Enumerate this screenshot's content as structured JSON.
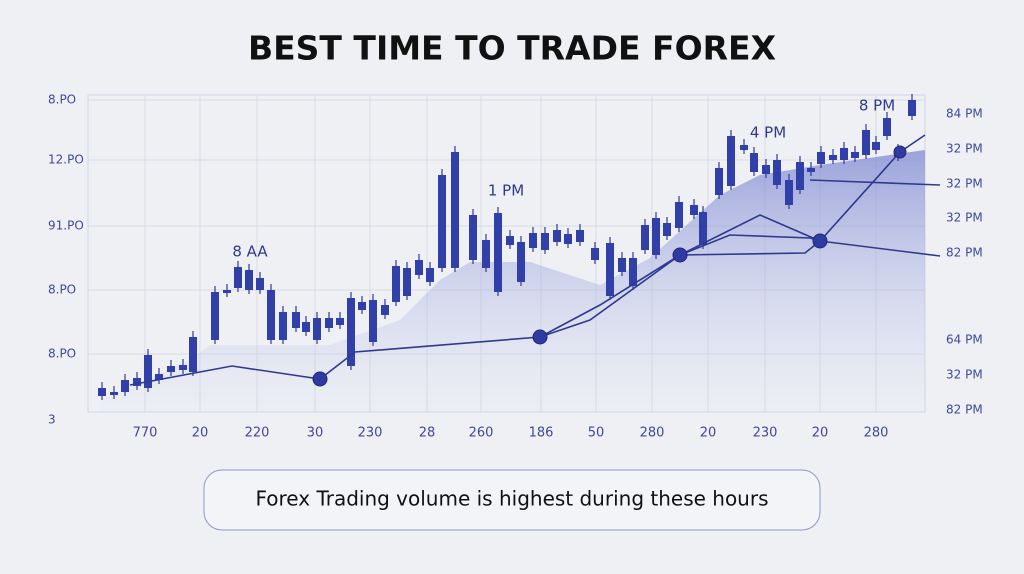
{
  "header": {
    "title": "BEST TIME TO TRADE FOREX"
  },
  "left_axis": {
    "labels": [
      "8.PO",
      "12.PO",
      "91.PO",
      "8.PO",
      "8.PO",
      "3"
    ]
  },
  "right_axis": {
    "labels": [
      "84 PM",
      "32 PM",
      "32 PM",
      "32 PM",
      "82 PM",
      "64 PM",
      "32 PM",
      "82 PM"
    ]
  },
  "bottom_axis": {
    "labels": [
      "770",
      "20",
      "220",
      "30",
      "230",
      "28",
      "260",
      "186",
      "50",
      "280",
      "20",
      "230",
      "20",
      "280"
    ]
  },
  "annotations": [
    "8 AA",
    "1 PM",
    "4 PM",
    "8 PM"
  ],
  "caption": "Forex Trading volume is highest during these hours"
}
